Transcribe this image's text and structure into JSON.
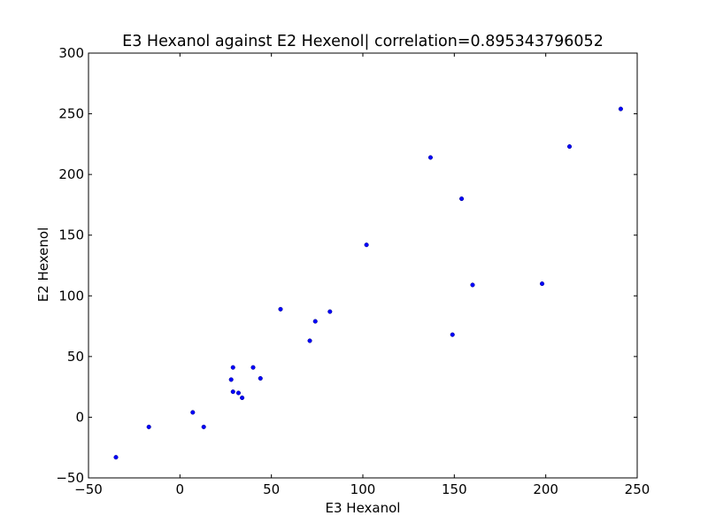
{
  "chart_data": {
    "type": "scatter",
    "title": "E3 Hexanol against E2 Hexenol| correlation=0.895343796052",
    "xlabel": "E3 Hexanol",
    "ylabel": "E2 Hexenol",
    "xlim": [
      -50,
      250
    ],
    "ylim": [
      -50,
      300
    ],
    "xticks": [
      -50,
      0,
      50,
      100,
      150,
      200,
      250
    ],
    "yticks": [
      -50,
      0,
      50,
      100,
      150,
      200,
      250,
      300
    ],
    "grid": false,
    "marker_color": "#0000ff",
    "series": [
      {
        "x": [
          -35,
          -17,
          7,
          13,
          28,
          29,
          29,
          32,
          34,
          40,
          44,
          55,
          71,
          74,
          82,
          102,
          137,
          149,
          154,
          160,
          198,
          213,
          241
        ],
        "y": [
          -33,
          -8,
          4,
          -8,
          31,
          41,
          21,
          20,
          16,
          41,
          32,
          89,
          63,
          79,
          87,
          142,
          214,
          68,
          180,
          109,
          110,
          223,
          254
        ]
      }
    ]
  }
}
